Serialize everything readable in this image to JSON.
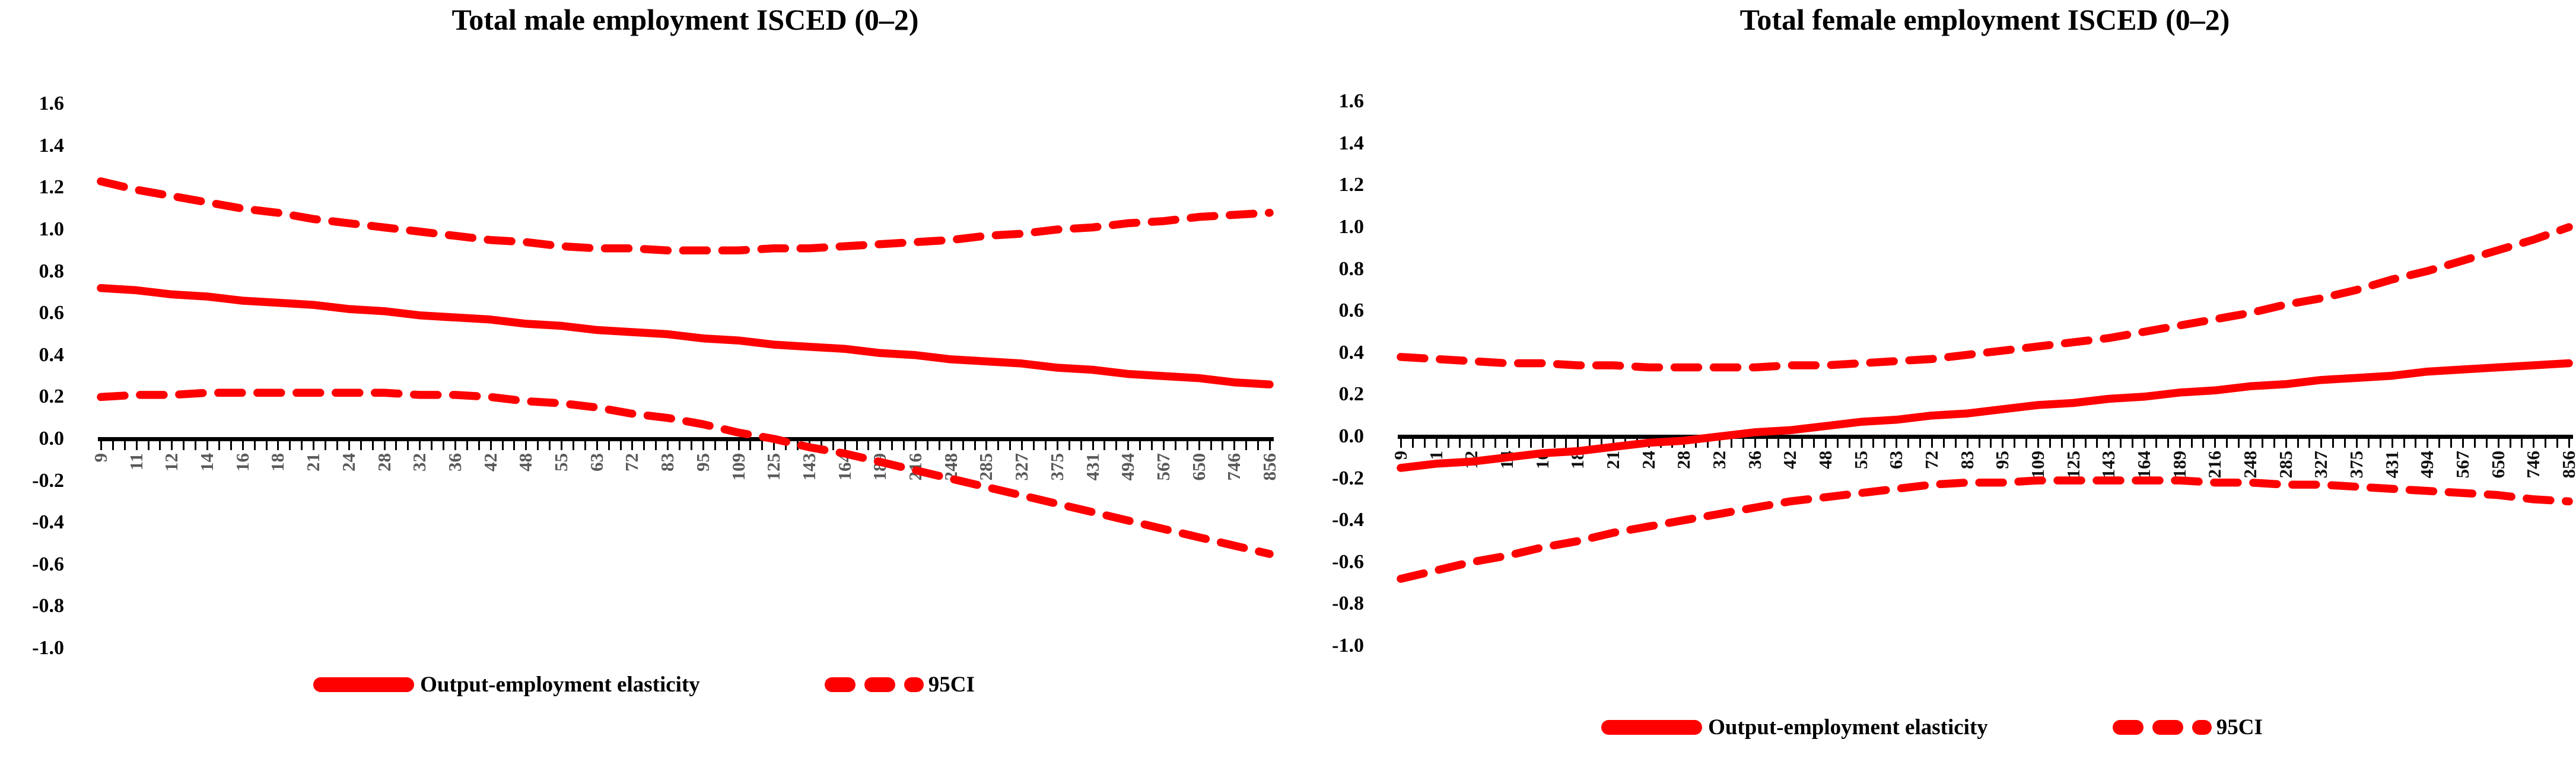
{
  "page": {
    "background": "#ffffff"
  },
  "chart_data": [
    {
      "type": "line",
      "title": "Total male employment ISCED (0–2)",
      "xlabel": "",
      "ylabel": "",
      "ylim": [
        -1.0,
        1.6
      ],
      "y_ticks": [
        "1.6",
        "1.4",
        "1.2",
        "1.0",
        "0.8",
        "0.6",
        "0.4",
        "0.2",
        "0.0",
        "-0.2",
        "-0.4",
        "-0.6",
        "-0.8",
        "-1.0"
      ],
      "categories": [
        "9",
        "11",
        "12",
        "14",
        "16",
        "18",
        "21",
        "24",
        "28",
        "32",
        "36",
        "42",
        "48",
        "55",
        "63",
        "72",
        "83",
        "95",
        "109",
        "125",
        "143",
        "164",
        "189",
        "216",
        "248",
        "285",
        "327",
        "375",
        "431",
        "494",
        "567",
        "650",
        "746",
        "856"
      ],
      "legend": [
        "Output-employment elasticity",
        "95CI"
      ],
      "legend_position": "bottom",
      "grid": "off",
      "line_color": "#ff0000",
      "x_label_color": "#595959",
      "series": [
        {
          "name": "Output-employment elasticity",
          "style": "solid",
          "values": [
            0.72,
            0.71,
            0.69,
            0.68,
            0.66,
            0.65,
            0.64,
            0.62,
            0.61,
            0.59,
            0.58,
            0.57,
            0.55,
            0.54,
            0.52,
            0.51,
            0.5,
            0.48,
            0.47,
            0.45,
            0.44,
            0.43,
            0.41,
            0.4,
            0.38,
            0.37,
            0.36,
            0.34,
            0.33,
            0.31,
            0.3,
            0.29,
            0.27,
            0.26
          ]
        },
        {
          "name": "95CI upper",
          "style": "dashed",
          "values": [
            1.23,
            1.19,
            1.16,
            1.13,
            1.1,
            1.08,
            1.05,
            1.03,
            1.01,
            0.99,
            0.97,
            0.95,
            0.94,
            0.92,
            0.91,
            0.91,
            0.9,
            0.9,
            0.9,
            0.91,
            0.91,
            0.92,
            0.93,
            0.94,
            0.95,
            0.97,
            0.98,
            1.0,
            1.01,
            1.03,
            1.04,
            1.06,
            1.07,
            1.08
          ]
        },
        {
          "name": "95CI lower",
          "style": "dashed",
          "values": [
            0.2,
            0.21,
            0.21,
            0.22,
            0.22,
            0.22,
            0.22,
            0.22,
            0.22,
            0.21,
            0.21,
            0.2,
            0.18,
            0.17,
            0.15,
            0.12,
            0.1,
            0.07,
            0.03,
            0.0,
            -0.04,
            -0.07,
            -0.11,
            -0.15,
            -0.19,
            -0.23,
            -0.27,
            -0.31,
            -0.35,
            -0.39,
            -0.43,
            -0.47,
            -0.51,
            -0.55
          ]
        }
      ]
    },
    {
      "type": "line",
      "title": "Total female employment ISCED (0–2)",
      "xlabel": "",
      "ylabel": "",
      "ylim": [
        -1.0,
        1.6
      ],
      "y_ticks": [
        "1.6",
        "1.4",
        "1.2",
        "1.0",
        "0.8",
        "0.6",
        "0.4",
        "0.2",
        "0.0",
        "-0.2",
        "-0.4",
        "-0.6",
        "-0.8",
        "-1.0"
      ],
      "categories": [
        "9",
        "11",
        "12",
        "14",
        "16",
        "18",
        "21",
        "24",
        "28",
        "32",
        "36",
        "42",
        "48",
        "55",
        "63",
        "72",
        "83",
        "95",
        "109",
        "125",
        "143",
        "164",
        "189",
        "216",
        "248",
        "285",
        "327",
        "375",
        "431",
        "494",
        "567",
        "650",
        "746",
        "856"
      ],
      "legend": [
        "Output-employment elasticity",
        "95CI"
      ],
      "legend_position": "bottom",
      "grid": "off",
      "line_color": "#ff0000",
      "x_label_color": "#111111",
      "series": [
        {
          "name": "Output-employment elasticity",
          "style": "solid",
          "values": [
            -0.15,
            -0.13,
            -0.12,
            -0.1,
            -0.08,
            -0.07,
            -0.05,
            -0.03,
            -0.02,
            0.0,
            0.02,
            0.03,
            0.05,
            0.07,
            0.08,
            0.1,
            0.11,
            0.13,
            0.15,
            0.16,
            0.18,
            0.19,
            0.21,
            0.22,
            0.24,
            0.25,
            0.27,
            0.28,
            0.29,
            0.31,
            0.32,
            0.33,
            0.34,
            0.35
          ]
        },
        {
          "name": "95CI upper",
          "style": "dashed",
          "values": [
            0.38,
            0.37,
            0.36,
            0.35,
            0.35,
            0.34,
            0.34,
            0.33,
            0.33,
            0.33,
            0.33,
            0.34,
            0.34,
            0.35,
            0.36,
            0.37,
            0.39,
            0.41,
            0.43,
            0.45,
            0.47,
            0.5,
            0.53,
            0.56,
            0.59,
            0.63,
            0.66,
            0.7,
            0.75,
            0.79,
            0.84,
            0.89,
            0.94,
            1.0
          ]
        },
        {
          "name": "95CI lower",
          "style": "dashed",
          "values": [
            -0.68,
            -0.64,
            -0.6,
            -0.57,
            -0.53,
            -0.5,
            -0.46,
            -0.43,
            -0.4,
            -0.37,
            -0.34,
            -0.31,
            -0.29,
            -0.27,
            -0.25,
            -0.23,
            -0.22,
            -0.22,
            -0.21,
            -0.21,
            -0.21,
            -0.21,
            -0.21,
            -0.22,
            -0.22,
            -0.23,
            -0.23,
            -0.24,
            -0.25,
            -0.26,
            -0.27,
            -0.28,
            -0.3,
            -0.31
          ]
        }
      ]
    }
  ]
}
